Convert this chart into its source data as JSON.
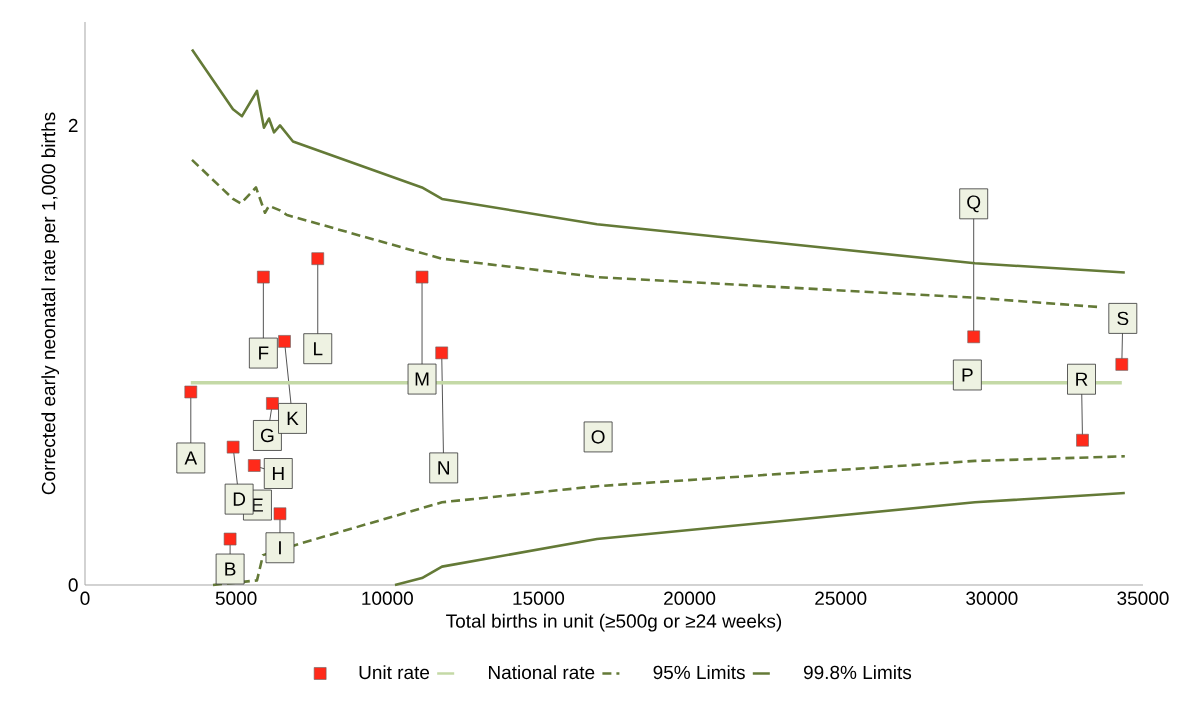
{
  "chart_data": {
    "type": "line",
    "xlabel": "Total births in unit (≥500g or ≥24 weeks)",
    "ylabel": "Corrected early neonatal rate per 1,000  births",
    "xlim": [
      0,
      35000
    ],
    "ylim": [
      0,
      2.45
    ],
    "xticks": [
      0,
      5000,
      10000,
      15000,
      20000,
      25000,
      30000,
      35000
    ],
    "yticks": [
      0,
      2
    ],
    "grid": false,
    "legend": "bottom",
    "series": [
      {
        "name": "Unit rate",
        "type": "scatter",
        "marker": "square",
        "color": "#ff2a1a",
        "x": [
          3500,
          4800,
          4900,
          5900,
          6200,
          5600,
          6450,
          6600,
          7700,
          11150,
          11800,
          29400,
          33000,
          34300
        ],
        "values": [
          0.84,
          0.2,
          0.6,
          1.34,
          0.79,
          0.52,
          0.31,
          1.06,
          1.42,
          1.34,
          1.01,
          1.08,
          0.63,
          0.96
        ]
      },
      {
        "name": "National rate",
        "line_style": "solid",
        "color": "#c4d9a6",
        "x": [
          3500,
          34300
        ],
        "values": [
          0.88,
          0.88
        ]
      },
      {
        "name": "95% Limits",
        "line_style": "dashed",
        "color": "#647a37",
        "x": [
          3540,
          4896,
          5160,
          5657,
          5954,
          6087,
          6451,
          6682,
          11810,
          16937,
          29440,
          33500
        ],
        "values": [
          1.85,
          1.68,
          1.66,
          1.73,
          1.62,
          1.65,
          1.63,
          1.61,
          1.42,
          1.34,
          1.25,
          1.21
        ]
      },
      {
        "line_style": "dashed",
        "color": "#647a37",
        "x": [
          4234,
          5127,
          5690,
          5888,
          6120,
          7112,
          11810,
          16937,
          29440,
          34400
        ],
        "values": [
          0,
          null,
          0.02,
          0.13,
          null,
          0.18,
          0.36,
          0.43,
          0.54,
          0.56
        ]
      },
      {
        "name": "99.8% Limits",
        "line_style": "solid",
        "color": "#647a37",
        "x": [
          3540,
          4896,
          5194,
          5690,
          5921,
          6087,
          6252,
          6451,
          6881,
          11148,
          11810,
          16937,
          29440,
          34400
        ],
        "values": [
          2.33,
          2.07,
          2.04,
          2.15,
          1.99,
          2.03,
          1.97,
          2.0,
          1.93,
          1.73,
          1.68,
          1.57,
          1.4,
          1.36
        ]
      },
      {
        "line_style": "solid",
        "color": "#647a37",
        "x": [
          10255,
          11148,
          11810,
          16937,
          29440,
          34400
        ],
        "values": [
          0,
          0.03,
          0.08,
          0.2,
          0.36,
          0.4
        ]
      }
    ],
    "annotations": [
      {
        "text": "A",
        "x": 3500,
        "y": 0.84
      },
      {
        "text": "B",
        "x": 4800,
        "y": 0.2
      },
      {
        "text": "D",
        "x": 4900,
        "y": 0.6
      },
      "E",
      {
        "text": "F",
        "x": 5900,
        "y": 1.34
      },
      {
        "text": "G",
        "x": 6200,
        "y": 0.79
      },
      {
        "text": "H",
        "x": 5600,
        "y": 0.52
      },
      {
        "text": "I",
        "x": 6450,
        "y": 0.31
      },
      {
        "text": "K",
        "x": 6600,
        "y": 1.06
      },
      {
        "text": "L",
        "x": 7700,
        "y": 1.42
      },
      {
        "text": "M",
        "x": 11150,
        "y": 1.34
      },
      {
        "text": "N",
        "x": 11800,
        "y": 1.01
      },
      "O",
      "P",
      {
        "text": "Q",
        "x": 29400,
        "y": 1.08
      },
      {
        "text": "R",
        "x": 33000,
        "y": 0.63
      },
      {
        "text": "S",
        "x": 34300,
        "y": 0.96
      }
    ]
  }
}
